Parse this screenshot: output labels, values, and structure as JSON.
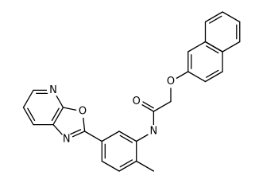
{
  "atoms": [
    {
      "label": "N"
    },
    {
      "label": "O"
    },
    {
      "label": "N"
    },
    {
      "label": "O"
    },
    {
      "label": "O"
    },
    {
      "label": "N"
    }
  ]
}
